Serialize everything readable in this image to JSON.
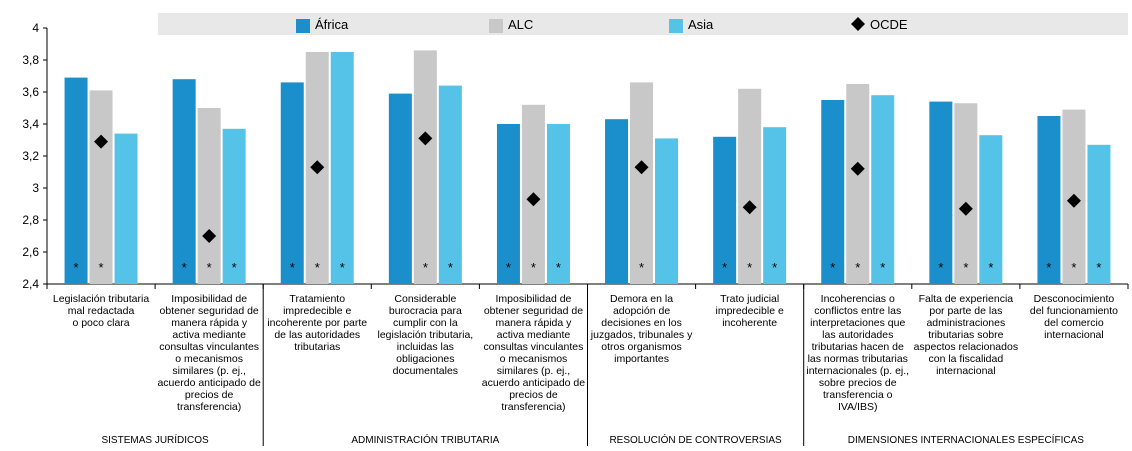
{
  "chart_data": {
    "type": "bar",
    "title": "",
    "xlabel": "",
    "ylabel": "",
    "ylim": [
      2.4,
      4.0
    ],
    "yticks": [
      "2,4",
      "2,6",
      "2,8",
      "3",
      "3,2",
      "3,4",
      "3,6",
      "3,8",
      "4"
    ],
    "grid": false,
    "legend_position": "top",
    "legend": [
      {
        "name": "África",
        "marker": "bar"
      },
      {
        "name": "ALC",
        "marker": "bar"
      },
      {
        "name": "Asia",
        "marker": "bar"
      },
      {
        "name": "OCDE",
        "marker": "diamond"
      }
    ],
    "colors": {
      "África": "#1a8fcb",
      "ALC": "#c8c8c8",
      "Asia": "#55c2e8",
      "OCDE": "#000000",
      "legend_band": "#e8e8e8"
    },
    "categories": [
      [
        "Legislación tributaria",
        "mal redactada",
        "o poco clara"
      ],
      [
        "Imposibilidad de",
        "obtener seguridad de",
        "manera rápida y",
        "activa mediante",
        "consultas vinculantes",
        "o mecanismos",
        "similares (p. ej.,",
        "acuerdo anticipado de",
        "precios de",
        "transferencia)"
      ],
      [
        "Tratamiento",
        "impredecible e",
        "incoherente por parte",
        "de las autoridades",
        "tributarias"
      ],
      [
        "Considerable",
        "burocracia para",
        "cumplir con la",
        "legislación tributaria,",
        "incluidas las",
        "obligaciones",
        "documentales"
      ],
      [
        "Imposibilidad de",
        "obtener seguridad de",
        "manera rápida y",
        "activa mediante",
        "consultas vinculantes",
        "o mecanismos",
        "similares (p. ej.,",
        "acuerdo anticipado de",
        "precios de",
        "transferencia)"
      ],
      [
        "Demora en la",
        "adopción de",
        "decisiones en los",
        "juzgados, tribunales y",
        "otros organismos",
        "importantes"
      ],
      [
        "Trato judicial",
        "impredecible e",
        "incoherente"
      ],
      [
        "Incoherencias o",
        "conflictos entre las",
        "interpretaciones que",
        "las autoridades",
        "tributarias hacen de",
        "las normas tributarias",
        "internacionales (p. ej.,",
        "sobre precios de",
        "transferencia o",
        "IVA/IBS)"
      ],
      [
        "Falta de experiencia",
        "por parte de las",
        "administraciones",
        "tributarias sobre",
        "aspectos relacionados",
        "con la fiscalidad",
        "internacional"
      ],
      [
        "Desconocimiento",
        "del funcionamiento",
        "del comercio",
        "internacional"
      ]
    ],
    "groups": [
      {
        "label": "SISTEMAS JURÍDICOS",
        "categories": [
          0,
          1
        ]
      },
      {
        "label": "ADMINISTRACIÓN TRIBUTARIA",
        "categories": [
          2,
          3,
          4
        ]
      },
      {
        "label": "RESOLUCIÓN DE CONTROVERSIAS",
        "categories": [
          5,
          6
        ]
      },
      {
        "label": "DIMENSIONES INTERNACIONALES ESPECÍFICAS",
        "categories": [
          7,
          8,
          9
        ]
      }
    ],
    "series": [
      {
        "name": "África",
        "type": "bar",
        "values": [
          3.69,
          3.68,
          3.66,
          3.59,
          3.4,
          3.43,
          3.32,
          3.55,
          3.54,
          3.45
        ]
      },
      {
        "name": "ALC",
        "type": "bar",
        "values": [
          3.61,
          3.5,
          3.85,
          3.86,
          3.52,
          3.66,
          3.62,
          3.65,
          3.53,
          3.49
        ]
      },
      {
        "name": "Asia",
        "type": "bar",
        "values": [
          3.34,
          3.37,
          3.85,
          3.64,
          3.4,
          3.31,
          3.38,
          3.58,
          3.33,
          3.27
        ]
      },
      {
        "name": "OCDE",
        "type": "diamond",
        "values": [
          3.29,
          2.7,
          3.13,
          3.31,
          2.93,
          3.13,
          2.88,
          3.12,
          2.87,
          2.92
        ]
      }
    ],
    "significance_marker": "*",
    "significance": [
      [
        true,
        true,
        false
      ],
      [
        true,
        true,
        true
      ],
      [
        true,
        true,
        true
      ],
      [
        false,
        true,
        true
      ],
      [
        true,
        true,
        true
      ],
      [
        false,
        true,
        false
      ],
      [
        true,
        true,
        true
      ],
      [
        true,
        true,
        true
      ],
      [
        true,
        true,
        true
      ],
      [
        true,
        true,
        true
      ]
    ]
  }
}
